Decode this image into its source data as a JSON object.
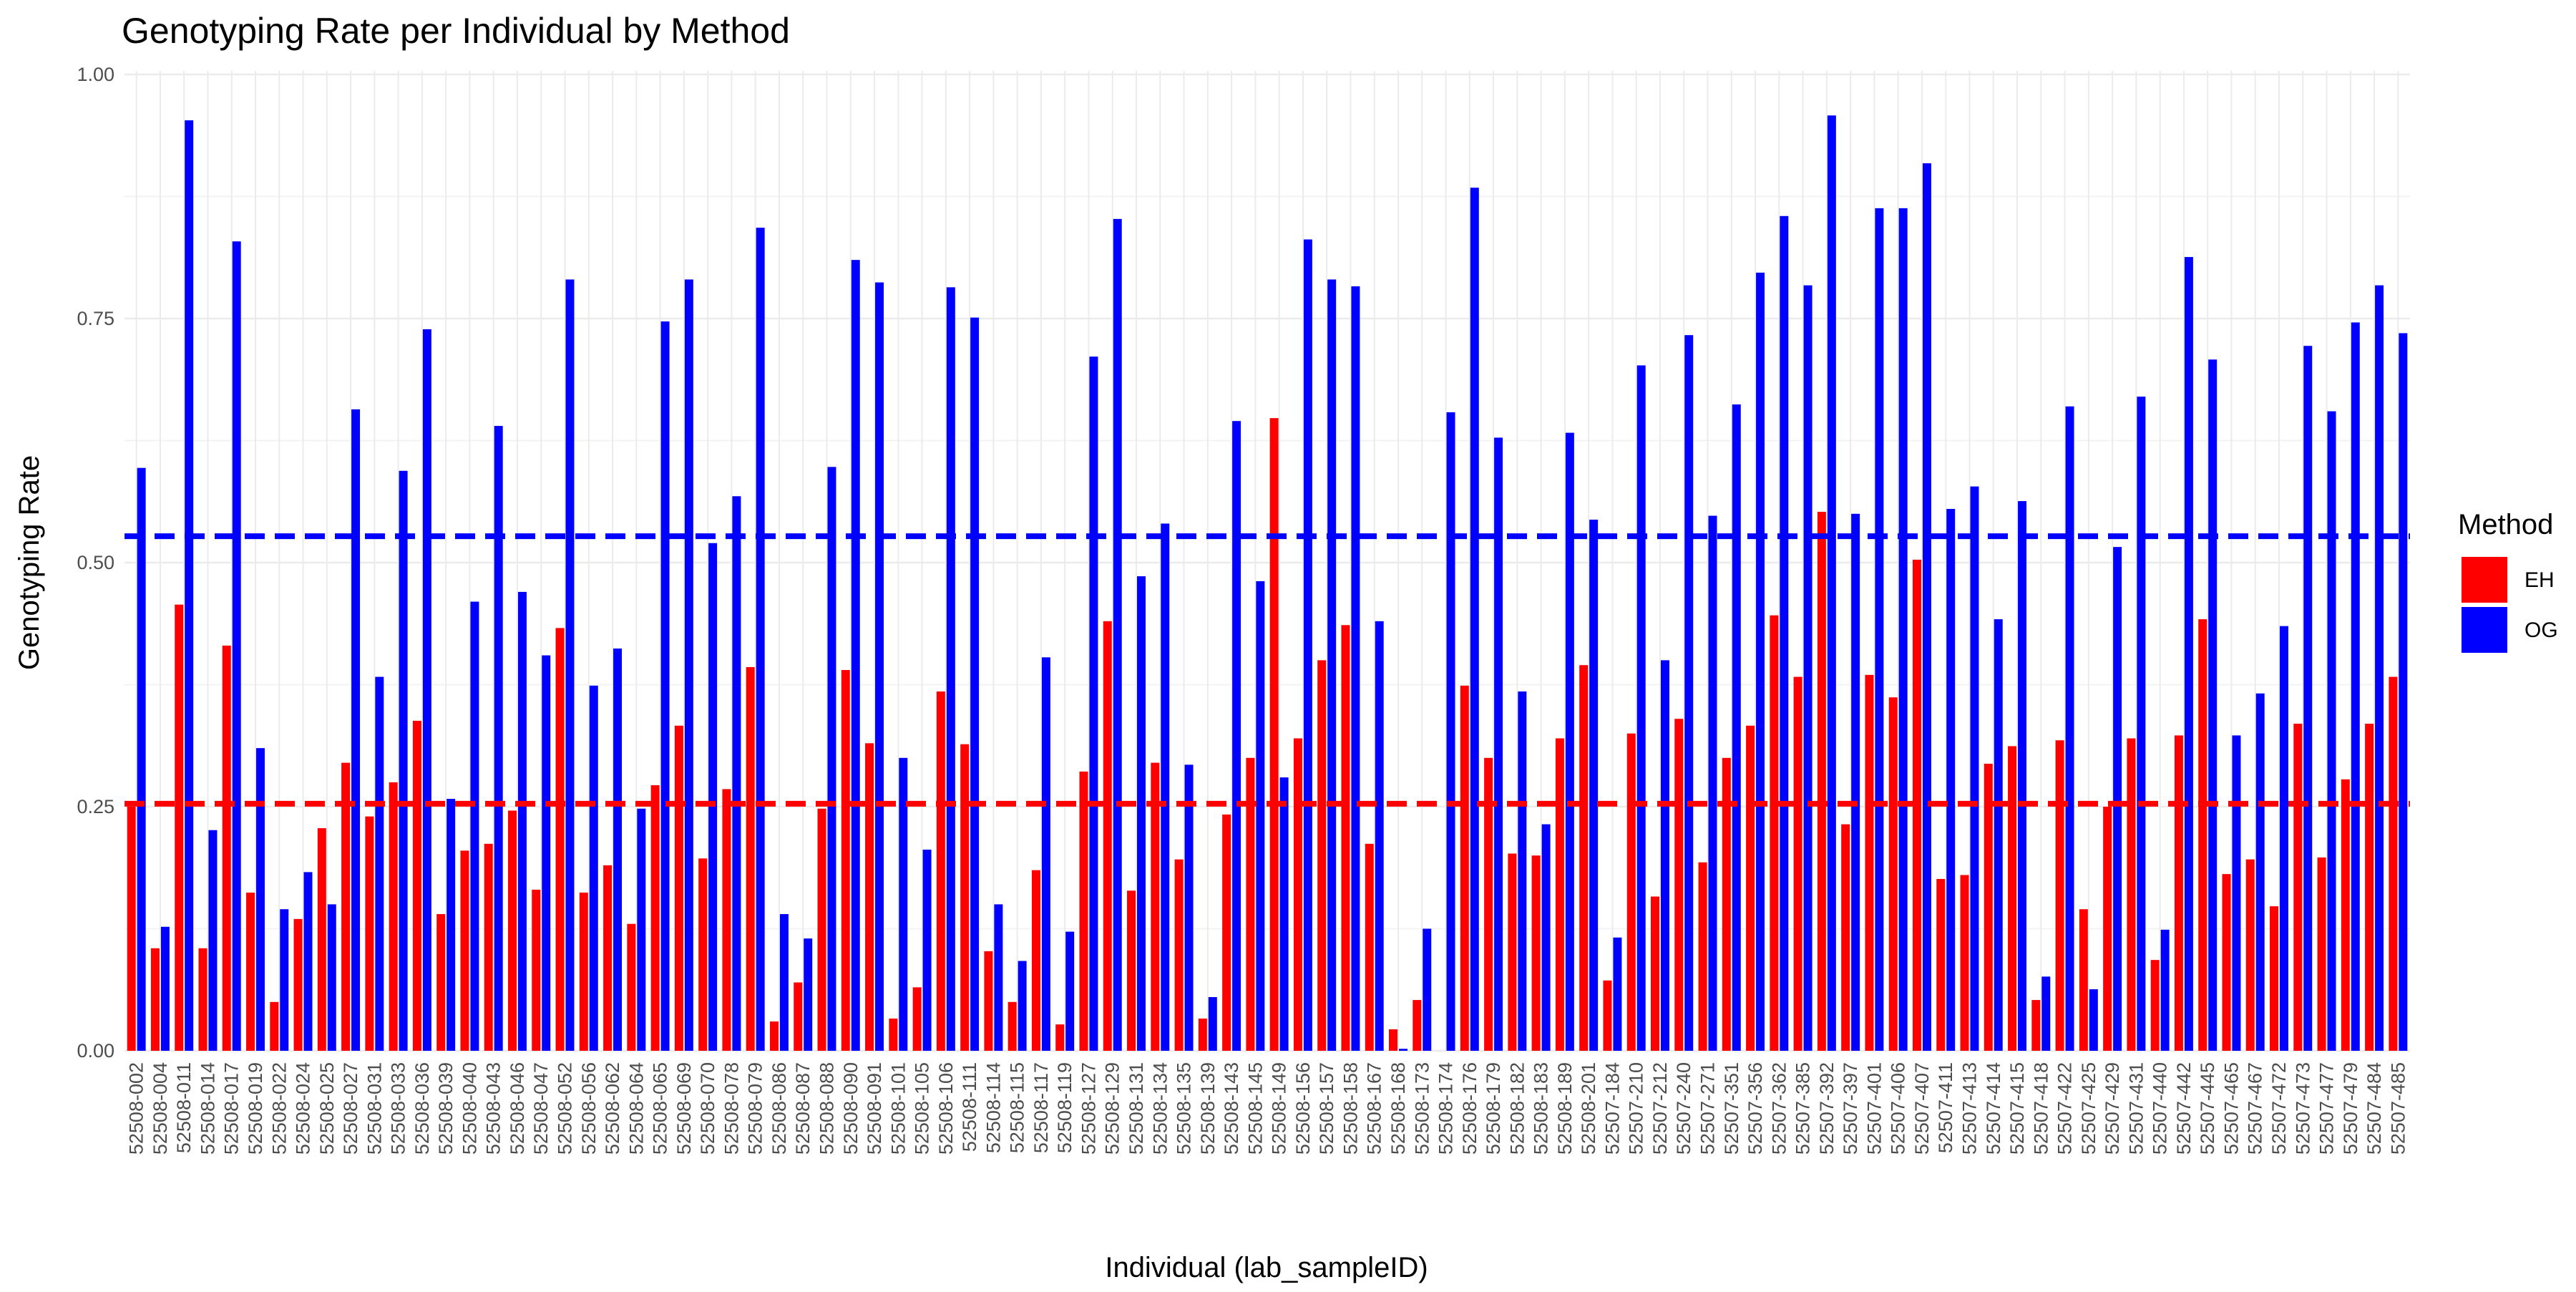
{
  "chart_data": {
    "type": "bar",
    "title": "Genotyping Rate per Individual by Method",
    "x_label": "Individual (lab_sampleID)",
    "y_label": "Genotyping Rate",
    "legend_title": "Method",
    "categories": [
      "52508-002",
      "52508-004",
      "52508-011",
      "52508-014",
      "52508-017",
      "52508-019",
      "52508-022",
      "52508-024",
      "52508-025",
      "52508-027",
      "52508-031",
      "52508-033",
      "52508-036",
      "52508-039",
      "52508-040",
      "52508-043",
      "52508-046",
      "52508-047",
      "52508-052",
      "52508-056",
      "52508-062",
      "52508-064",
      "52508-065",
      "52508-069",
      "52508-070",
      "52508-078",
      "52508-079",
      "52508-086",
      "52508-087",
      "52508-088",
      "52508-090",
      "52508-091",
      "52508-101",
      "52508-105",
      "52508-106",
      "52508-111",
      "52508-114",
      "52508-115",
      "52508-117",
      "52508-119",
      "52508-127",
      "52508-129",
      "52508-131",
      "52508-134",
      "52508-135",
      "52508-139",
      "52508-143",
      "52508-145",
      "52508-149",
      "52508-156",
      "52508-157",
      "52508-158",
      "52508-167",
      "52508-168",
      "52508-173",
      "52508-174",
      "52508-176",
      "52508-179",
      "52508-182",
      "52508-183",
      "52508-189",
      "52508-201",
      "52507-184",
      "52507-210",
      "52507-212",
      "52507-240",
      "52507-271",
      "52507-351",
      "52507-356",
      "52507-362",
      "52507-385",
      "52507-392",
      "52507-397",
      "52507-401",
      "52507-406",
      "52507-407",
      "52507-411",
      "52507-413",
      "52507-414",
      "52507-415",
      "52507-418",
      "52507-422",
      "52507-425",
      "52507-429",
      "52507-431",
      "52507-440",
      "52507-442",
      "52507-445",
      "52507-465",
      "52507-467",
      "52507-472",
      "52507-473",
      "52507-477",
      "52507-479",
      "52507-484",
      "52507-485"
    ],
    "series": [
      {
        "name": "EH",
        "color": "#ff0000",
        "values": [
          0.25,
          0.105,
          0.457,
          0.105,
          0.415,
          0.162,
          0.05,
          0.135,
          0.228,
          0.295,
          0.24,
          0.275,
          0.338,
          0.14,
          0.205,
          0.212,
          0.246,
          0.165,
          0.433,
          0.162,
          0.19,
          0.13,
          0.272,
          0.333,
          0.197,
          0.268,
          0.393,
          0.03,
          0.07,
          0.248,
          0.39,
          0.315,
          0.033,
          0.065,
          0.368,
          0.314,
          0.102,
          0.05,
          0.185,
          0.027,
          0.286,
          0.44,
          0.164,
          0.295,
          0.196,
          0.033,
          0.242,
          0.3,
          0.648,
          0.32,
          0.4,
          0.436,
          0.212,
          0.022,
          0.052,
          0,
          0.374,
          0.3,
          0.202,
          0.2,
          0.32,
          0.395,
          0.072,
          0.325,
          0.158,
          0.34,
          0.193,
          0.3,
          0.333,
          0.446,
          0.383,
          0.552,
          0.232,
          0.385,
          0.362,
          0.503,
          0.176,
          0.18,
          0.294,
          0.312,
          0.052,
          0.318,
          0.145,
          0.25,
          0.32,
          0.093,
          0.323,
          0.442,
          0.181,
          0.196,
          0.148,
          0.335,
          0.198,
          0.278,
          0.335,
          0.383
        ]
      },
      {
        "name": "OG",
        "color": "#0000ff",
        "values": [
          0.597,
          0.127,
          0.953,
          0.226,
          0.829,
          0.31,
          0.145,
          0.183,
          0.15,
          0.657,
          0.383,
          0.594,
          0.739,
          0.258,
          0.46,
          0.64,
          0.47,
          0.405,
          0.79,
          0.374,
          0.412,
          0.248,
          0.747,
          0.79,
          0.52,
          0.568,
          0.843,
          0.14,
          0.115,
          0.598,
          0.81,
          0.787,
          0.3,
          0.206,
          0.782,
          0.751,
          0.15,
          0.092,
          0.403,
          0.122,
          0.711,
          0.852,
          0.486,
          0.54,
          0.293,
          0.055,
          0.645,
          0.481,
          0.28,
          0.831,
          0.79,
          0.783,
          0.44,
          0.002,
          0.125,
          0.654,
          0.884,
          0.628,
          0.368,
          0.232,
          0.633,
          0.544,
          0.116,
          0.702,
          0.4,
          0.733,
          0.548,
          0.662,
          0.797,
          0.855,
          0.784,
          0.958,
          0.55,
          0.863,
          0.863,
          0.909,
          0.555,
          0.578,
          0.442,
          0.563,
          0.076,
          0.66,
          0.063,
          0.516,
          0.67,
          0.124,
          0.813,
          0.708,
          0.323,
          0.366,
          0.435,
          0.722,
          0.655,
          0.746,
          0.784,
          0.735
        ]
      }
    ],
    "reference_lines": [
      {
        "value": 0.253,
        "color": "#ff0000"
      },
      {
        "value": 0.527,
        "color": "#0000ff"
      }
    ],
    "ylim": [
      0,
      1
    ],
    "yticks": [
      {
        "value": 0,
        "label": "0.00"
      },
      {
        "value": 0.25,
        "label": "0.25"
      },
      {
        "value": 0.5,
        "label": "0.50"
      },
      {
        "value": 0.75,
        "label": "0.75"
      },
      {
        "value": 1,
        "label": "1.00"
      }
    ],
    "grid": true,
    "legend": "right"
  }
}
